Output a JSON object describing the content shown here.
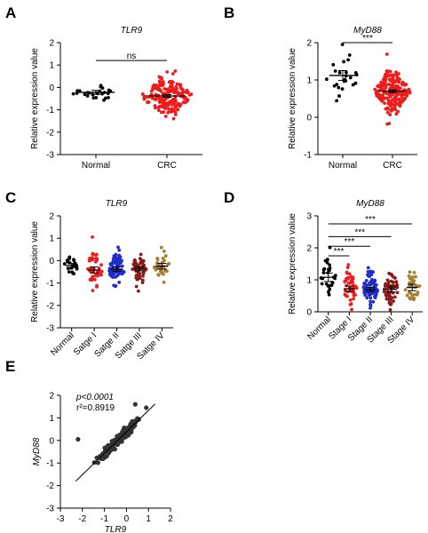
{
  "chart_data": [
    {
      "panel": "A",
      "type": "scatter",
      "title": "TLR9",
      "ylabel": "Relative expression value",
      "ylim": [
        -3,
        2
      ],
      "yticks": [
        "-3",
        "-2",
        "-1",
        "0",
        "1",
        "2"
      ],
      "categories": [
        "Normal",
        "CRC"
      ],
      "series": [
        {
          "color": "#000000",
          "n": 24,
          "mean": -0.22,
          "spread": 0.22
        },
        {
          "color": "#ee1c1c",
          "n": 200,
          "mean": -0.38,
          "spread": 0.42
        }
      ],
      "comparisons": [
        {
          "from": 0,
          "to": 1,
          "level": 1.2,
          "label": "ns"
        }
      ]
    },
    {
      "panel": "B",
      "type": "scatter",
      "title": "MyD88",
      "ylabel": "Relative expression value",
      "ylim": [
        -1,
        2
      ],
      "yticks": [
        "-1",
        "0",
        "1",
        "2"
      ],
      "categories": [
        "Normal",
        "CRC"
      ],
      "series": [
        {
          "color": "#000000",
          "n": 24,
          "mean": 1.12,
          "spread": 0.32
        },
        {
          "color": "#ee1c1c",
          "n": 200,
          "mean": 0.7,
          "spread": 0.26
        }
      ],
      "comparisons": [
        {
          "from": 0,
          "to": 1,
          "level": 2.0,
          "label": "***"
        }
      ]
    },
    {
      "panel": "C",
      "type": "scatter",
      "title": "TLR9",
      "ylabel": "Relative expression value",
      "ylim": [
        -3,
        2
      ],
      "yticks": [
        "-3",
        "-2",
        "-1",
        "0",
        "1",
        "2"
      ],
      "categories": [
        "Normal",
        "Satge I",
        "Satge II",
        "Satge III",
        "Satge IV"
      ],
      "series": [
        {
          "color": "#000000",
          "n": 24,
          "mean": -0.22,
          "spread": 0.22
        },
        {
          "color": "#ee1c1c",
          "n": 45,
          "mean": -0.42,
          "spread": 0.45
        },
        {
          "color": "#1f2ecb",
          "n": 70,
          "mean": -0.38,
          "spread": 0.4
        },
        {
          "color": "#8b1a1a",
          "n": 55,
          "mean": -0.36,
          "spread": 0.35
        },
        {
          "color": "#a67c2e",
          "n": 30,
          "mean": -0.25,
          "spread": 0.35
        }
      ],
      "comparisons": []
    },
    {
      "panel": "D",
      "type": "scatter",
      "title": "MyD88",
      "ylabel": "Relative expression value",
      "ylim": [
        0,
        3
      ],
      "yticks": [
        "0",
        "1",
        "2",
        "3"
      ],
      "categories": [
        "Normal",
        "Stage I",
        "Stage II",
        "Stage III",
        "Stage IV"
      ],
      "series": [
        {
          "color": "#000000",
          "n": 28,
          "mean": 1.08,
          "spread": 0.35
        },
        {
          "color": "#ee1c1c",
          "n": 45,
          "mean": 0.72,
          "spread": 0.28
        },
        {
          "color": "#1f2ecb",
          "n": 70,
          "mean": 0.7,
          "spread": 0.28
        },
        {
          "color": "#8b1a1a",
          "n": 55,
          "mean": 0.7,
          "spread": 0.3
        },
        {
          "color": "#a67c2e",
          "n": 30,
          "mean": 0.76,
          "spread": 0.27
        }
      ],
      "comparisons": [
        {
          "from": 0,
          "to": 1,
          "level": 1.75,
          "label": "***"
        },
        {
          "from": 0,
          "to": 2,
          "level": 2.05,
          "label": "***"
        },
        {
          "from": 0,
          "to": 3,
          "level": 2.35,
          "label": "***"
        },
        {
          "from": 0,
          "to": 4,
          "level": 2.75,
          "label": "***"
        }
      ]
    },
    {
      "panel": "E",
      "type": "scatter",
      "xlabel": "TLR9",
      "ylabel": "MyD88",
      "xlim": [
        -3,
        2
      ],
      "ylim": [
        -3,
        2
      ],
      "xticks": [
        "-3",
        "-2",
        "-1",
        "0",
        "1",
        "2"
      ],
      "yticks": [
        "-3",
        "-2",
        "-1",
        "0",
        "1",
        "2"
      ],
      "annotation_p": "p<0.0001",
      "annotation_r2": "r²=0.8919",
      "regression": {
        "slope": 0.95,
        "intercept": 0.38,
        "x_range": [
          -2.3,
          1.3
        ]
      },
      "n": 160,
      "outliers": [
        [
          -2.2,
          0.05
        ],
        [
          0.4,
          1.6
        ],
        [
          0.9,
          1.45
        ],
        [
          -1.2,
          -0.7
        ]
      ]
    }
  ]
}
